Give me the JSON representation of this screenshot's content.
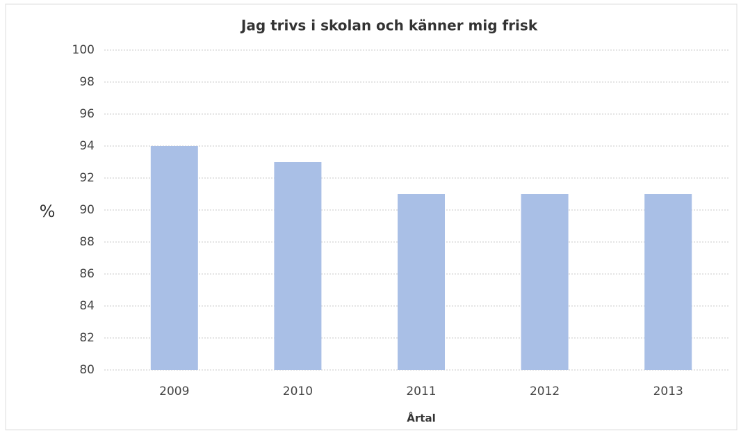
{
  "chart_data": {
    "type": "bar",
    "title": "Jag trivs i skolan och känner mig frisk",
    "x_label": "Årtal",
    "y_label": "%",
    "categories": [
      "2009",
      "2010",
      "2011",
      "2012",
      "2013"
    ],
    "values": [
      94,
      93,
      91,
      91,
      91
    ],
    "color": "#a9bfe6",
    "ylim": [
      80,
      100
    ],
    "yticks": [
      80,
      82,
      84,
      86,
      88,
      90,
      92,
      94,
      96,
      98,
      100
    ],
    "grid": true
  }
}
